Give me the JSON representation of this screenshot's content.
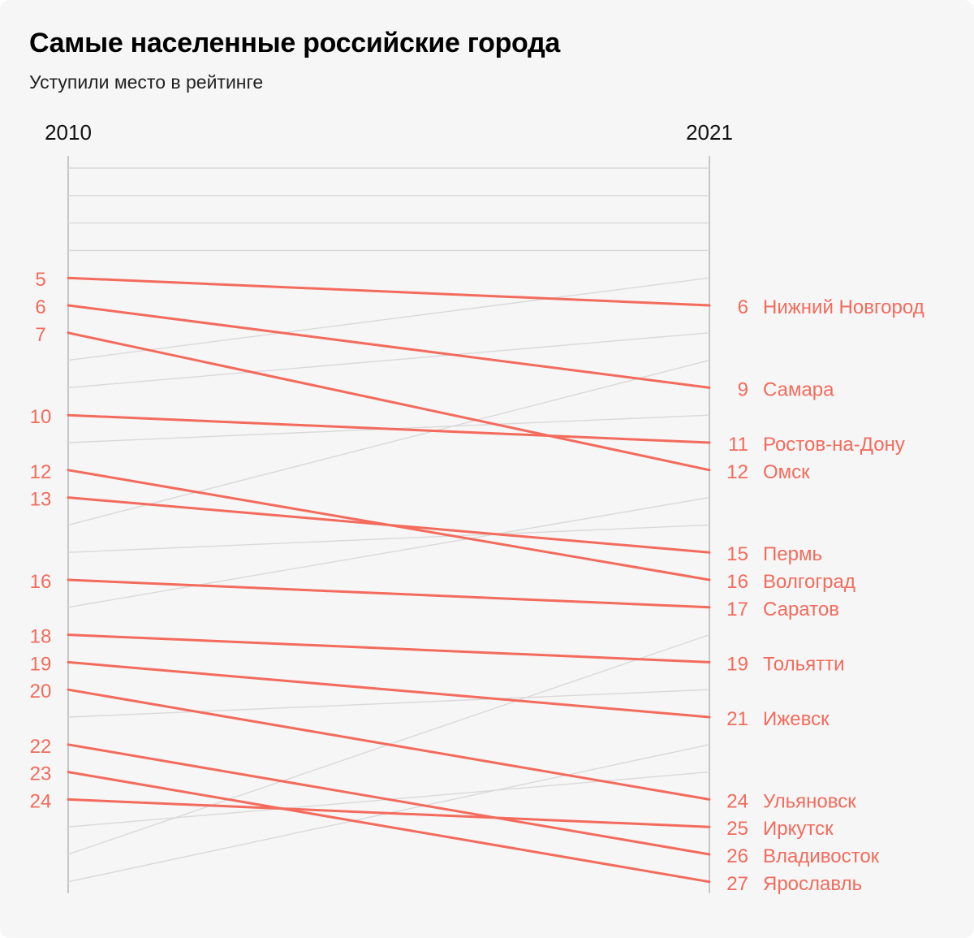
{
  "title": "Самые населенные российские города",
  "subtitle": "Уступили место в рейтинге",
  "colors": {
    "highlight": "#f36b5c",
    "background_lines": "#d9d9d9",
    "axis": "#b5b5b5",
    "text": "#111111"
  },
  "chart_data": {
    "type": "line",
    "chart_kind": "slope",
    "x": [
      "2010",
      "2021"
    ],
    "y_axis": "rank (1 at top)",
    "rank_range": [
      1,
      27
    ],
    "highlighted_series": [
      {
        "name": "Нижний Новгород",
        "rank_2010": 5,
        "rank_2021": 6
      },
      {
        "name": "Самара",
        "rank_2010": 6,
        "rank_2021": 9
      },
      {
        "name": "Омск",
        "rank_2010": 7,
        "rank_2021": 12
      },
      {
        "name": "Ростов-на-Дону",
        "rank_2010": 10,
        "rank_2021": 11
      },
      {
        "name": "Волгоград",
        "rank_2010": 12,
        "rank_2021": 16
      },
      {
        "name": "Пермь",
        "rank_2010": 13,
        "rank_2021": 15
      },
      {
        "name": "Саратов",
        "rank_2010": 16,
        "rank_2021": 17
      },
      {
        "name": "Тольятти",
        "rank_2010": 18,
        "rank_2021": 19
      },
      {
        "name": "Ижевск",
        "rank_2010": 19,
        "rank_2021": 21
      },
      {
        "name": "Ульяновск",
        "rank_2010": 20,
        "rank_2021": 24
      },
      {
        "name": "Владивосток",
        "rank_2010": 22,
        "rank_2021": 26
      },
      {
        "name": "Ярославль",
        "rank_2010": 23,
        "rank_2021": 27
      },
      {
        "name": "Иркутск",
        "rank_2010": 24,
        "rank_2021": 25
      }
    ],
    "other_series": [
      {
        "rank_2010": 1,
        "rank_2021": 1
      },
      {
        "rank_2010": 2,
        "rank_2021": 2
      },
      {
        "rank_2010": 3,
        "rank_2021": 3
      },
      {
        "rank_2010": 4,
        "rank_2021": 4
      },
      {
        "rank_2010": 8,
        "rank_2021": 5
      },
      {
        "rank_2010": 9,
        "rank_2021": 7
      },
      {
        "rank_2010": 11,
        "rank_2021": 10
      },
      {
        "rank_2010": 14,
        "rank_2021": 8
      },
      {
        "rank_2010": 15,
        "rank_2021": 14
      },
      {
        "rank_2010": 17,
        "rank_2021": 13
      },
      {
        "rank_2010": 21,
        "rank_2021": 20
      },
      {
        "rank_2010": 25,
        "rank_2021": 23
      },
      {
        "rank_2010": 26,
        "rank_2021": 18
      },
      {
        "rank_2010": 27,
        "rank_2021": 22
      }
    ]
  }
}
